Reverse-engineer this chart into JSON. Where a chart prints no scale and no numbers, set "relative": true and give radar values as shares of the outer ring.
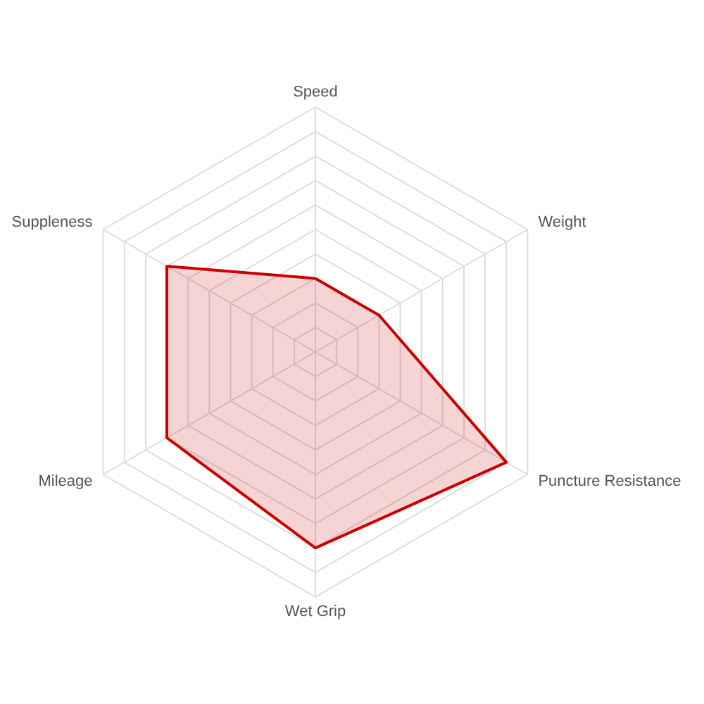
{
  "chart_data": {
    "type": "radar",
    "relative": true,
    "grid": true,
    "categories": [
      "Speed",
      "Weight",
      "Puncture Resistance",
      "Wet Grip",
      "Mileage",
      "Suppleness"
    ],
    "series": [
      {
        "color": "#cc0000",
        "values": [
          0.3,
          0.3,
          0.9,
          0.8,
          0.7,
          0.7
        ]
      }
    ]
  }
}
